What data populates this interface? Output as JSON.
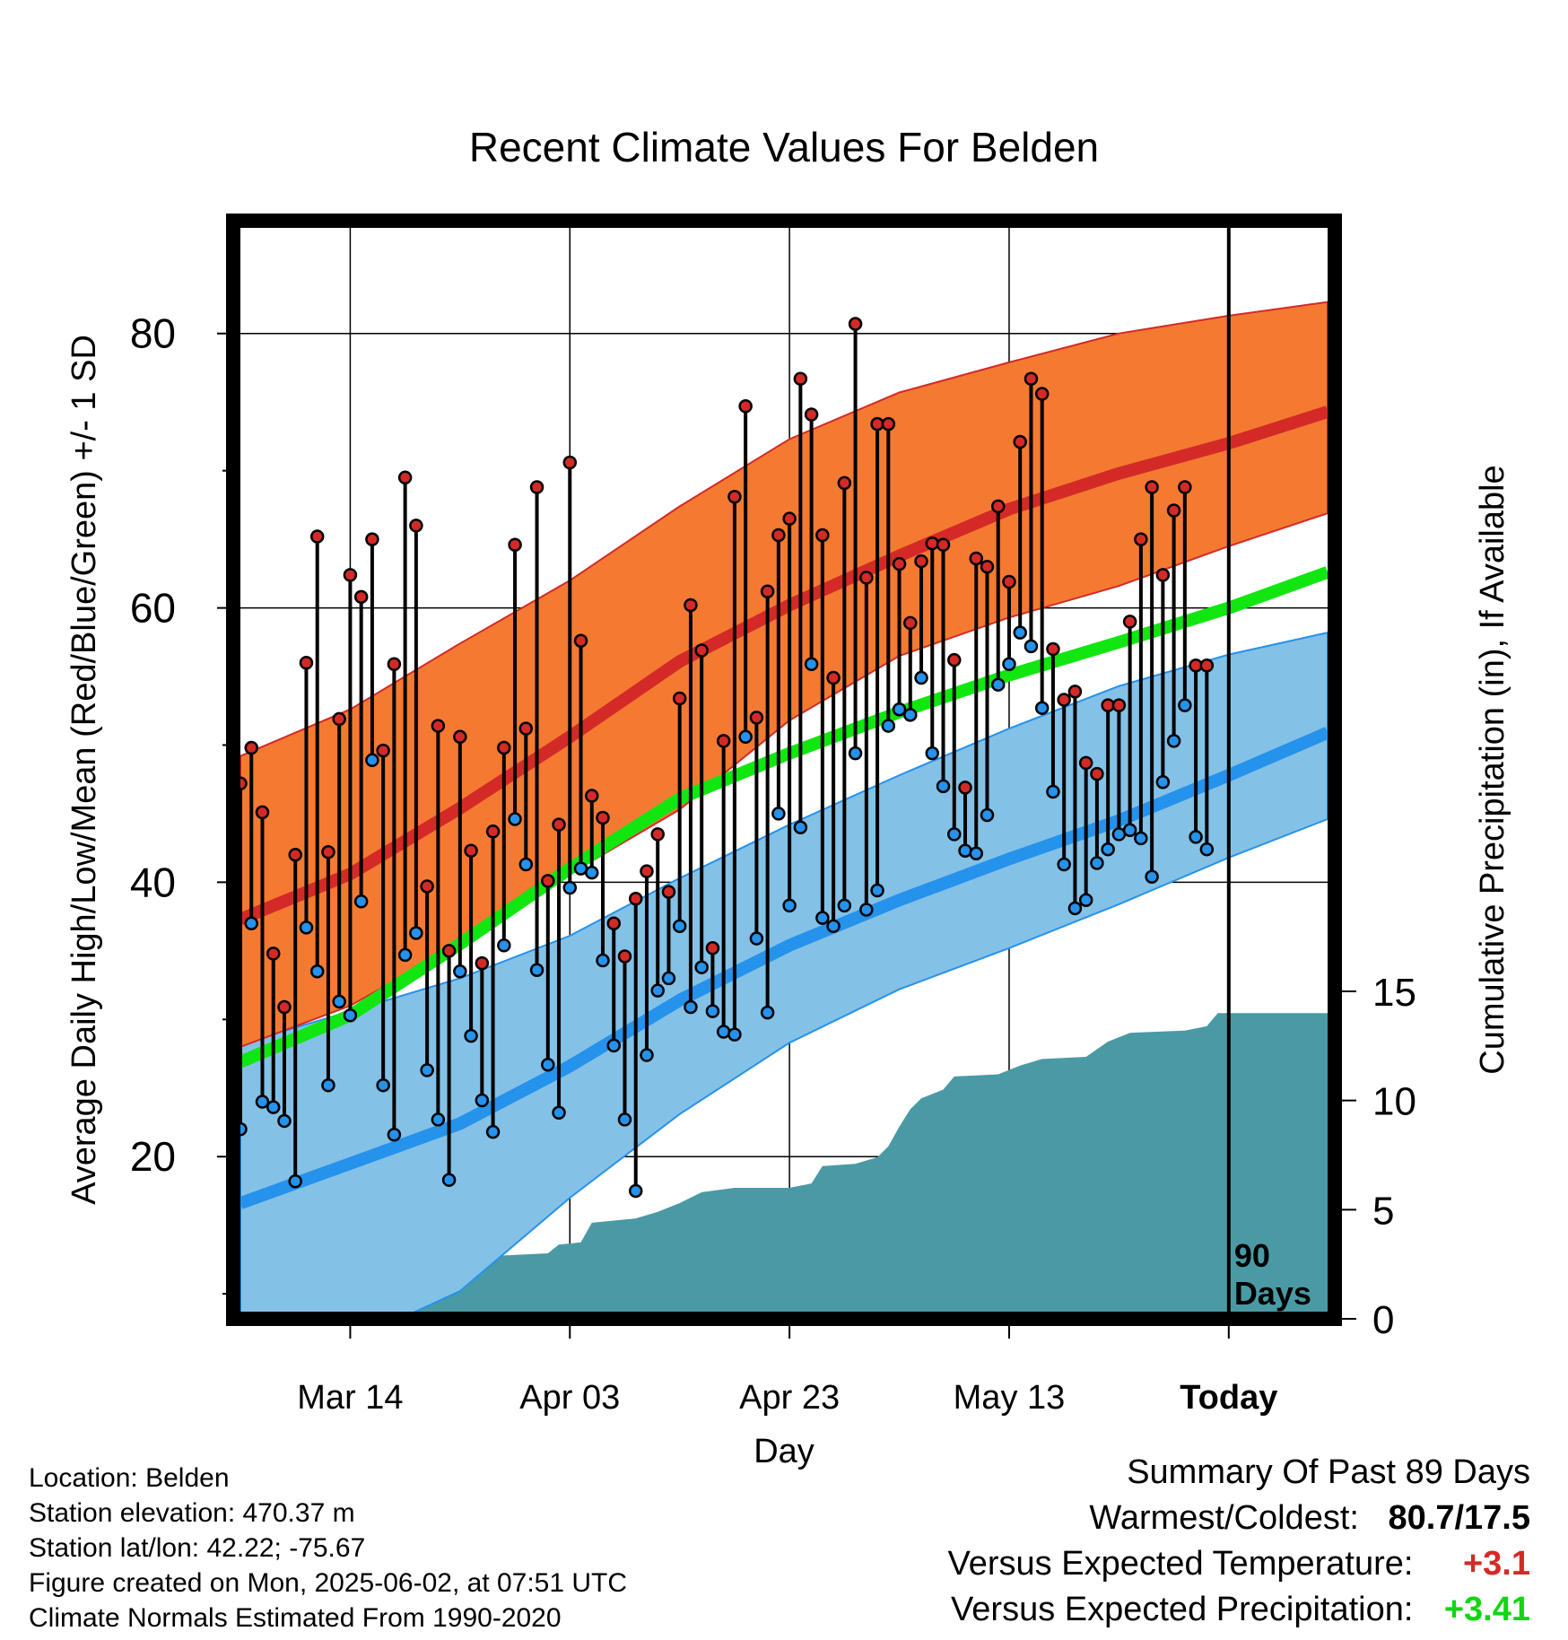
{
  "chart_data": {
    "type": "line",
    "title": "Recent Climate Values For Belden",
    "xlabel": "Day",
    "ylabel_left": "Average Daily High/Low/Mean (Red/Blue/Green) +/- 1 SD",
    "ylabel_right": "Cumulative Precipitation (in), If Available",
    "x_ticks": [
      {
        "day": 10,
        "label": "Mar 14"
      },
      {
        "day": 30,
        "label": "Apr 03"
      },
      {
        "day": 50,
        "label": "Apr 23"
      },
      {
        "day": 70,
        "label": "May 13"
      },
      {
        "day": 90,
        "label": "Today"
      }
    ],
    "y_left_ticks": [
      20,
      40,
      60,
      80
    ],
    "y_left_lim": [
      8.7,
      87.7
    ],
    "y_right_ticks": [
      0,
      5,
      10,
      15
    ],
    "today_marker_label": [
      "90",
      "Days"
    ],
    "normals": {
      "high_mean": [
        [
          0,
          37.3
        ],
        [
          10,
          40.6
        ],
        [
          20,
          45.4
        ],
        [
          30,
          50.6
        ],
        [
          40,
          56.1
        ],
        [
          50,
          60.2
        ],
        [
          60,
          63.8
        ],
        [
          70,
          67.2
        ],
        [
          80,
          69.8
        ],
        [
          90,
          72.0
        ],
        [
          99,
          74.3
        ]
      ],
      "high_plus_sd": [
        [
          0,
          49.2
        ],
        [
          10,
          52.6
        ],
        [
          20,
          57.4
        ],
        [
          30,
          62.0
        ],
        [
          40,
          67.4
        ],
        [
          50,
          72.3
        ],
        [
          60,
          75.7
        ],
        [
          70,
          77.9
        ],
        [
          80,
          80.0
        ],
        [
          90,
          81.3
        ],
        [
          99,
          82.3
        ]
      ],
      "high_minus_sd": [
        [
          0,
          28.0
        ],
        [
          10,
          31.0
        ],
        [
          20,
          35.5
        ],
        [
          30,
          40.6
        ],
        [
          40,
          45.3
        ],
        [
          50,
          51.8
        ],
        [
          60,
          56.5
        ],
        [
          70,
          59.3
        ],
        [
          80,
          61.6
        ],
        [
          90,
          64.5
        ],
        [
          99,
          66.9
        ]
      ],
      "mean": [
        [
          0,
          26.9
        ],
        [
          10,
          30.3
        ],
        [
          20,
          35.5
        ],
        [
          30,
          41.0
        ],
        [
          40,
          46.1
        ],
        [
          50,
          49.4
        ],
        [
          60,
          52.4
        ],
        [
          70,
          55.1
        ],
        [
          80,
          57.5
        ],
        [
          90,
          60.0
        ],
        [
          99,
          62.6
        ]
      ],
      "low_mean": [
        [
          0,
          16.6
        ],
        [
          10,
          19.5
        ],
        [
          20,
          22.4
        ],
        [
          30,
          26.6
        ],
        [
          40,
          31.4
        ],
        [
          50,
          35.4
        ],
        [
          60,
          38.7
        ],
        [
          70,
          41.7
        ],
        [
          80,
          44.5
        ],
        [
          90,
          47.8
        ],
        [
          99,
          50.9
        ]
      ],
      "low_plus_sd": [
        [
          0,
          28.2
        ],
        [
          10,
          30.6
        ],
        [
          20,
          33.0
        ],
        [
          30,
          36.1
        ],
        [
          40,
          40.3
        ],
        [
          50,
          44.2
        ],
        [
          60,
          47.8
        ],
        [
          70,
          51.2
        ],
        [
          80,
          54.3
        ],
        [
          90,
          56.6
        ],
        [
          99,
          58.2
        ]
      ],
      "low_minus_sd": [
        [
          0,
          4.0
        ],
        [
          10,
          6.5
        ],
        [
          20,
          10.2
        ],
        [
          30,
          17.0
        ],
        [
          40,
          23.1
        ],
        [
          50,
          28.3
        ],
        [
          60,
          32.2
        ],
        [
          70,
          35.2
        ],
        [
          80,
          38.4
        ],
        [
          90,
          41.8
        ],
        [
          99,
          44.6
        ]
      ]
    },
    "observed_high": [
      47.2,
      49.8,
      45.1,
      34.8,
      30.9,
      42.0,
      56.0,
      65.2,
      42.2,
      51.9,
      62.4,
      60.8,
      65.0,
      49.6,
      55.9,
      69.5,
      66.0,
      39.7,
      51.4,
      35.0,
      50.6,
      42.3,
      34.1,
      43.7,
      49.8,
      64.6,
      51.2,
      68.8,
      40.1,
      44.2,
      70.6,
      57.6,
      46.3,
      44.7,
      37.0,
      34.6,
      38.8,
      40.8,
      43.5,
      39.3,
      53.4,
      60.2,
      56.9,
      35.2,
      50.3,
      68.1,
      74.7,
      52.0,
      61.2,
      65.3,
      66.5,
      76.7,
      74.1,
      65.3,
      54.9,
      69.1,
      80.7,
      62.2,
      73.4,
      73.4,
      63.2,
      58.9,
      63.4,
      64.7,
      64.6,
      56.2,
      46.9,
      63.6,
      63.0,
      67.4,
      61.9,
      72.1,
      76.7,
      75.6,
      57.0,
      53.3,
      53.9,
      48.7,
      47.9,
      52.9,
      52.9,
      59.0,
      65.0,
      68.8,
      62.4,
      67.1,
      68.8,
      55.8,
      55.8
    ],
    "observed_low": [
      22.0,
      37.0,
      24.0,
      23.6,
      22.6,
      18.2,
      36.7,
      33.5,
      25.2,
      31.3,
      30.3,
      38.6,
      48.9,
      25.2,
      21.6,
      34.7,
      36.3,
      26.3,
      22.7,
      18.3,
      33.5,
      28.8,
      24.1,
      21.8,
      35.4,
      44.6,
      41.3,
      33.6,
      26.7,
      23.2,
      39.6,
      41.0,
      40.7,
      34.3,
      28.1,
      22.7,
      17.5,
      27.4,
      32.1,
      33.0,
      36.8,
      30.9,
      33.8,
      30.6,
      29.1,
      28.9,
      50.6,
      35.9,
      30.5,
      45.0,
      38.3,
      44.0,
      55.9,
      37.4,
      36.8,
      38.3,
      49.4,
      38.0,
      39.4,
      51.4,
      52.6,
      52.2,
      54.9,
      49.4,
      47.0,
      43.5,
      42.3,
      42.1,
      44.9,
      54.4,
      55.9,
      58.2,
      57.2,
      52.7,
      46.6,
      41.3,
      38.1,
      38.7,
      41.4,
      42.4,
      43.5,
      43.8,
      43.2,
      40.4,
      47.3,
      50.3,
      52.9,
      43.3,
      42.4
    ],
    "cumulative_precip": [
      [
        0,
        0.0
      ],
      [
        1,
        0.4
      ],
      [
        3,
        0.5
      ],
      [
        5,
        0.55
      ],
      [
        8,
        0.6
      ],
      [
        10,
        0.6
      ],
      [
        11,
        0.7
      ],
      [
        12,
        1.8
      ],
      [
        15,
        1.9
      ],
      [
        16,
        2.3
      ],
      [
        20,
        2.4
      ],
      [
        22,
        2.6
      ],
      [
        24,
        2.9
      ],
      [
        28,
        3.0
      ],
      [
        29,
        3.4
      ],
      [
        31,
        3.5
      ],
      [
        32,
        4.4
      ],
      [
        36,
        4.6
      ],
      [
        38,
        4.9
      ],
      [
        40,
        5.3
      ],
      [
        42,
        5.8
      ],
      [
        45,
        6.0
      ],
      [
        50,
        6.0
      ],
      [
        52,
        6.2
      ],
      [
        53,
        7.0
      ],
      [
        56,
        7.1
      ],
      [
        58,
        7.4
      ],
      [
        59,
        7.9
      ],
      [
        60,
        8.8
      ],
      [
        61,
        9.6
      ],
      [
        62,
        10.1
      ],
      [
        64,
        10.5
      ],
      [
        65,
        11.1
      ],
      [
        69,
        11.2
      ],
      [
        71,
        11.6
      ],
      [
        73,
        11.9
      ],
      [
        77,
        12.0
      ],
      [
        79,
        12.7
      ],
      [
        81,
        13.1
      ],
      [
        86,
        13.2
      ],
      [
        88,
        13.4
      ],
      [
        89,
        14.0
      ],
      [
        90,
        14.0
      ],
      [
        99,
        14.0
      ]
    ],
    "precip_lim": [
      0,
      15
    ]
  },
  "footer": {
    "location": "Location: Belden",
    "elevation": "Station elevation: 470.37 m",
    "latlon": "Station lat/lon: 42.22; -75.67",
    "created": "Figure created on Mon, 2025-06-02, at 07:51 UTC",
    "normals": "Climate Normals Estimated From 1990-2020"
  },
  "summary": {
    "heading": "Summary Of Past 89 Days",
    "warm_cold_label": "Warmest/Coldest:",
    "warm_cold_value": "80.7/17.5",
    "temp_label": "Versus Expected Temperature:",
    "temp_value": "+3.1",
    "precip_label": "Versus Expected Precipitation:",
    "precip_value": "+3.41"
  },
  "colors": {
    "high_band": "#f47a32",
    "high_mean": "#d42a27",
    "mean": "#11e611",
    "low_band": "#84c1e6",
    "low_mean": "#2592ec",
    "precip": "#4a9aa5",
    "high_point": "#d42a27",
    "low_point": "#2592ec",
    "temp_anomaly": "#d42a27",
    "precip_anomaly": "#11d611"
  }
}
